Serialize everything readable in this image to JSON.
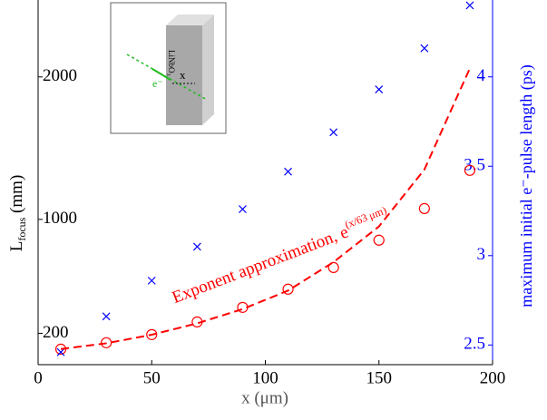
{
  "chart_data": {
    "type": "scatter",
    "xlabel": "x (μm)",
    "ylabel": {
      "main": "L",
      "sub": "focus",
      "unit": "(mm)"
    },
    "y2label": "maximum initial e⁻-pulse length (ps)",
    "annotation": {
      "text": "Exponent approximation, e",
      "exponent": "(x/63 μm)"
    },
    "inset": {
      "crystal": "LiNbO₃",
      "electron": "e⁻",
      "distance": "x"
    },
    "x": [
      10,
      30,
      50,
      70,
      90,
      110,
      130,
      150,
      170,
      190
    ],
    "series": [
      {
        "marker": "circle",
        "color": "#ff0000",
        "values": [
          89,
          134,
          191,
          280,
          382,
          510,
          662,
          854,
          1076,
          1344
        ]
      },
      {
        "marker": "cross",
        "color": "#0000ff",
        "axis": "y2",
        "values": [
          2.46,
          2.66,
          2.86,
          3.05,
          3.26,
          3.47,
          3.69,
          3.93,
          4.16,
          4.4
        ]
      },
      {
        "marker": "dashed-line",
        "color": "#ff0000",
        "values": [
          90,
          130,
          190,
          270,
          370,
          500,
          700,
          950,
          1350,
          2060
        ]
      }
    ],
    "xlim": [
      0,
      200
    ],
    "xticks": [
      0,
      50,
      100,
      150,
      200
    ],
    "ylim": [
      -20,
      2540
    ],
    "yticks": [
      200,
      1000,
      2000
    ],
    "y2lim": [
      2.39,
      4.43
    ],
    "y2ticks": [
      2.5,
      3,
      3.5,
      4
    ]
  }
}
